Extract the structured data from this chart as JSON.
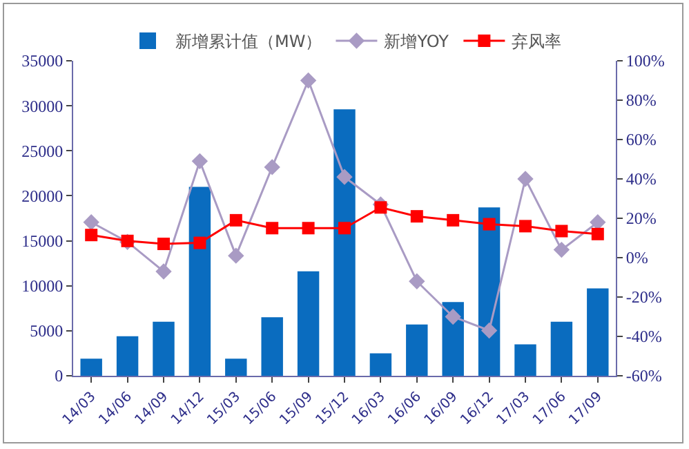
{
  "chart_data": {
    "type": "bar",
    "categories": [
      "14/03",
      "14/06",
      "14/09",
      "14/12",
      "15/03",
      "15/06",
      "15/09",
      "15/12",
      "16/03",
      "16/06",
      "16/09",
      "16/12",
      "17/03",
      "17/06",
      "17/09"
    ],
    "series": [
      {
        "name": "新增累计值（MW）",
        "color": "#0a6cbf",
        "values": [
          1900,
          4400,
          6000,
          21000,
          1900,
          6500,
          11600,
          29600,
          2500,
          5700,
          8200,
          18700,
          3500,
          6000,
          9700
        ]
      },
      {
        "name": "新增YOY",
        "type": "line",
        "axis": "y2",
        "color": "#a99bc4",
        "marker": "diamond",
        "values": [
          18,
          8,
          -7,
          49,
          1,
          46,
          90,
          41,
          27,
          -12,
          -30,
          -37,
          40,
          4,
          18
        ]
      },
      {
        "name": "弃风率",
        "type": "line",
        "axis": "y2",
        "color": "#ff0000",
        "marker": "square",
        "values": [
          11.5,
          8.5,
          7,
          7.5,
          19,
          15,
          15,
          15,
          25.5,
          21,
          19,
          17,
          16,
          13.5,
          12
        ]
      }
    ],
    "ylim": [
      0,
      35000
    ],
    "yticks": [
      0,
      5000,
      10000,
      15000,
      20000,
      25000,
      30000,
      35000
    ],
    "y2lim": [
      -60,
      100
    ],
    "y2ticks": [
      {
        "value": -60,
        "label": "-60%"
      },
      {
        "value": -40,
        "label": "-40%"
      },
      {
        "value": -20,
        "label": "-20%"
      },
      {
        "value": 0,
        "label": "0%"
      },
      {
        "value": 20,
        "label": "20%"
      },
      {
        "value": 40,
        "label": "40%"
      },
      {
        "value": 60,
        "label": "60%"
      },
      {
        "value": 80,
        "label": "80%"
      },
      {
        "value": 100,
        "label": "100%"
      }
    ],
    "grid": false,
    "legend": "top"
  }
}
